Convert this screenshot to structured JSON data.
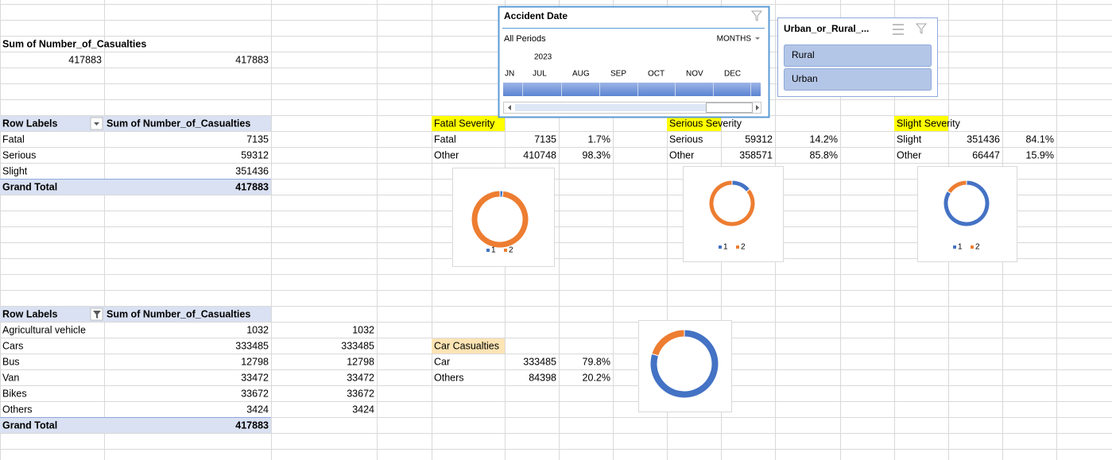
{
  "sum_pivot": {
    "header": "Sum of Number_of_Casualties",
    "values": [
      417883,
      417883
    ]
  },
  "severity_pivot": {
    "headers": [
      "Row Labels",
      "Sum of Number_of_Casualties"
    ],
    "rows": [
      [
        "Fatal",
        7135
      ],
      [
        "Serious",
        59312
      ],
      [
        "Slight",
        351436
      ]
    ],
    "total": [
      "Grand Total",
      417883
    ]
  },
  "severity_tables": [
    {
      "title": "Fatal Severity",
      "rows": [
        [
          "Fatal",
          7135,
          "1.7%"
        ],
        [
          "Other",
          410748,
          "98.3%"
        ]
      ],
      "legend": [
        "1",
        "2"
      ]
    },
    {
      "title": "Serious Severity",
      "rows": [
        [
          "Serious",
          59312,
          "14.2%"
        ],
        [
          "Other",
          358571,
          "85.8%"
        ]
      ],
      "legend": [
        "1",
        "2"
      ]
    },
    {
      "title": "Slight Severity",
      "rows": [
        [
          "Slight",
          351436,
          "84.1%"
        ],
        [
          "Other",
          66447,
          "15.9%"
        ]
      ],
      "legend": [
        "1",
        "2"
      ]
    }
  ],
  "vehicle_pivot": {
    "headers": [
      "Row Labels",
      "Sum of Number_of_Casualties"
    ],
    "rows": [
      [
        "Agricultural vehicle",
        1032,
        1032
      ],
      [
        "Cars",
        333485,
        333485
      ],
      [
        "Bus",
        12798,
        12798
      ],
      [
        "Van",
        33472,
        33472
      ],
      [
        "Bikes",
        33672,
        33672
      ],
      [
        "Others",
        3424,
        3424
      ]
    ],
    "total": [
      "Grand Total",
      417883
    ]
  },
  "car_table": {
    "title": "Car Casualties",
    "rows": [
      [
        "Car",
        333485,
        "79.8%"
      ],
      [
        "Others",
        84398,
        "20.2%"
      ]
    ]
  },
  "date_slicer": {
    "title": "Accident Date",
    "period": "All Periods",
    "level": "MONTHS",
    "year": "2023",
    "months": [
      "JN",
      "JUL",
      "AUG",
      "SEP",
      "OCT",
      "NOV",
      "DEC"
    ]
  },
  "area_slicer": {
    "title": "Urban_or_Rural_...",
    "items": [
      "Rural",
      "Urban"
    ]
  }
}
